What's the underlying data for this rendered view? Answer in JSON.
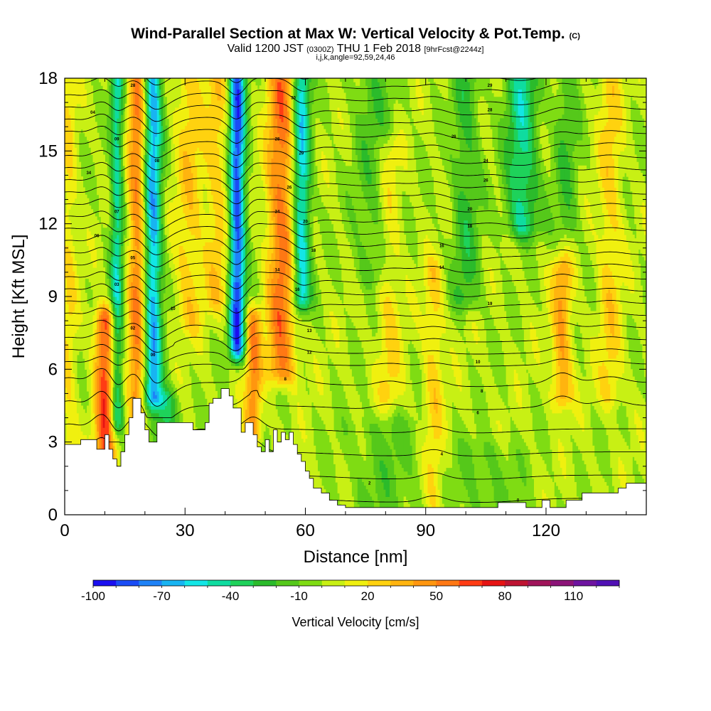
{
  "chart_data": {
    "type": "heatmap",
    "title": "Wind-Parallel Section at Max W: Vertical Velocity & Pot.Temp.",
    "title_mark": "(C)",
    "subtitle_main": "Valid 1200 JST",
    "subtitle_utc": "(0300Z)",
    "subtitle_date": "THU 1 Feb 2018",
    "subtitle_fcst": "[9hrFcst@2244z]",
    "info_line": "i,j,k,angle=92,59,24,46",
    "xlabel": "Distance [nm]",
    "ylabel": "Height [Kft MSL]",
    "xlim": [
      0,
      145
    ],
    "ylim": [
      0,
      18
    ],
    "x_ticks": [
      0,
      30,
      60,
      90,
      120
    ],
    "y_ticks": [
      0,
      3,
      6,
      9,
      12,
      15,
      18
    ],
    "colorbar": {
      "label": "Vertical Velocity [cm/s]",
      "min": -100,
      "max": 130,
      "step": 10,
      "tick_labels": [
        -100,
        -70,
        -40,
        -10,
        20,
        50,
        80,
        110
      ],
      "colors": [
        "#1a0ff0",
        "#1a4cf5",
        "#1e82f7",
        "#18b4f2",
        "#13e6e6",
        "#0fdca0",
        "#1ed25a",
        "#2bbb2b",
        "#55c81a",
        "#7fdc13",
        "#c8f014",
        "#f0f00f",
        "#ffd20f",
        "#ffb40f",
        "#ff960f",
        "#ff7814",
        "#ff3c14",
        "#e61414",
        "#be1432",
        "#a0145a",
        "#8c1478",
        "#6e14a0",
        "#5010b4"
      ]
    },
    "background_color": "#7fdc13",
    "updraft_bands": [
      {
        "x": 10,
        "w": 2.5,
        "amp": 62,
        "zmin": 2.5,
        "zmax": 8
      },
      {
        "x": 18,
        "w": 2.2,
        "amp": 48,
        "zmin": 3.5,
        "zmax": 18
      },
      {
        "x": 31,
        "w": 3.5,
        "amp": 24,
        "zmin": 8,
        "zmax": 18
      },
      {
        "x": 47,
        "w": 2.0,
        "amp": 45,
        "zmin": 3.5,
        "zmax": 8
      },
      {
        "x": 54,
        "w": 3.5,
        "amp": 52,
        "zmin": 6,
        "zmax": 18
      },
      {
        "x": 38,
        "w": 3.0,
        "amp": 24,
        "zmin": 9,
        "zmax": 18
      },
      {
        "x": 92,
        "w": 2.5,
        "amp": 22,
        "zmin": 0.5,
        "zmax": 10
      },
      {
        "x": 81,
        "w": 3.0,
        "amp": 20,
        "zmin": 5,
        "zmax": 15
      },
      {
        "x": 124,
        "w": 2.5,
        "amp": 38,
        "zmin": 5,
        "zmax": 10
      },
      {
        "x": 136,
        "w": 3.0,
        "amp": 22,
        "zmin": 5,
        "zmax": 18
      },
      {
        "x": 1,
        "w": 2.0,
        "amp": 18,
        "zmin": 3,
        "zmax": 18
      }
    ],
    "downdraft_bands": [
      {
        "x": 13,
        "w": 1.6,
        "amp": -48,
        "zmin": 4,
        "zmax": 18
      },
      {
        "x": 22,
        "w": 2.2,
        "amp": -68,
        "zmin": 5,
        "zmax": 18
      },
      {
        "x": 43,
        "w": 2.0,
        "amp": -88,
        "zmin": 7,
        "zmax": 18
      },
      {
        "x": 59,
        "w": 2.2,
        "amp": -62,
        "zmin": 9,
        "zmax": 18
      },
      {
        "x": 114,
        "w": 4.0,
        "amp": -45,
        "zmin": 12,
        "zmax": 18
      },
      {
        "x": 100,
        "w": 3.5,
        "amp": -25,
        "zmin": 9,
        "zmax": 18
      },
      {
        "x": 77,
        "w": 5.0,
        "amp": -18,
        "zmin": 10,
        "zmax": 18
      },
      {
        "x": 125,
        "w": 3.0,
        "amp": -20,
        "zmin": 12,
        "zmax": 18
      },
      {
        "x": 25,
        "w": 3.0,
        "amp": -40,
        "zmin": 3.5,
        "zmax": 4.6
      },
      {
        "x": 80,
        "w": 10.0,
        "amp": -14,
        "zmin": 0.5,
        "zmax": 3.5
      },
      {
        "x": 105,
        "w": 8.0,
        "amp": -14,
        "zmin": 0.5,
        "zmax": 2.5
      }
    ],
    "terrain": [
      [
        0,
        2.9
      ],
      [
        4,
        2.9
      ],
      [
        4,
        3.1
      ],
      [
        8,
        3.1
      ],
      [
        8,
        2.7
      ],
      [
        10,
        2.7
      ],
      [
        10,
        3.3
      ],
      [
        11,
        3.3
      ],
      [
        11,
        2.7
      ],
      [
        12,
        2.7
      ],
      [
        12,
        2.3
      ],
      [
        13,
        2.3
      ],
      [
        13,
        2.0
      ],
      [
        14,
        2.0
      ],
      [
        14,
        2.6
      ],
      [
        15,
        2.6
      ],
      [
        15,
        3.3
      ],
      [
        16,
        3.3
      ],
      [
        16,
        4.0
      ],
      [
        17,
        4.0
      ],
      [
        17,
        4.8
      ],
      [
        19,
        4.8
      ],
      [
        19,
        4.2
      ],
      [
        20,
        4.2
      ],
      [
        20,
        3.5
      ],
      [
        21,
        3.5
      ],
      [
        21,
        3.0
      ],
      [
        23,
        3.0
      ],
      [
        23,
        3.8
      ],
      [
        25,
        3.8
      ],
      [
        25,
        3.8
      ],
      [
        32,
        3.8
      ],
      [
        32,
        3.5
      ],
      [
        35,
        3.5
      ],
      [
        35,
        3.8
      ],
      [
        36,
        3.8
      ],
      [
        36,
        4.6
      ],
      [
        37,
        4.6
      ],
      [
        37,
        4.8
      ],
      [
        39,
        4.8
      ],
      [
        39,
        5.2
      ],
      [
        41,
        5.2
      ],
      [
        41,
        4.9
      ],
      [
        42,
        4.9
      ],
      [
        42,
        4.4
      ],
      [
        44,
        4.4
      ],
      [
        44,
        3.4
      ],
      [
        45,
        3.4
      ],
      [
        45,
        3.8
      ],
      [
        47,
        3.8
      ],
      [
        47,
        3.3
      ],
      [
        48,
        3.3
      ],
      [
        48,
        2.8
      ],
      [
        49,
        2.8
      ],
      [
        49,
        2.6
      ],
      [
        50,
        2.6
      ],
      [
        50,
        3.1
      ],
      [
        51,
        3.1
      ],
      [
        51,
        2.6
      ],
      [
        52,
        2.6
      ],
      [
        52,
        3.5
      ],
      [
        53,
        3.5
      ],
      [
        53,
        3.0
      ],
      [
        54,
        3.0
      ],
      [
        54,
        3.4
      ],
      [
        55,
        3.4
      ],
      [
        55,
        3.1
      ],
      [
        56,
        3.1
      ],
      [
        56,
        3.4
      ],
      [
        57,
        3.4
      ],
      [
        57,
        2.9
      ],
      [
        58,
        2.9
      ],
      [
        58,
        2.5
      ],
      [
        59,
        2.5
      ],
      [
        59,
        2.2
      ],
      [
        60,
        2.2
      ],
      [
        60,
        1.8
      ],
      [
        61,
        1.8
      ],
      [
        61,
        1.5
      ],
      [
        62,
        1.5
      ],
      [
        62,
        1.1
      ],
      [
        64,
        1.1
      ],
      [
        64,
        0.9
      ],
      [
        66,
        0.9
      ],
      [
        66,
        0.6
      ],
      [
        68,
        0.6
      ],
      [
        68,
        0.4
      ],
      [
        70,
        0.4
      ],
      [
        70,
        0.3
      ],
      [
        71,
        0.3
      ],
      [
        71,
        0.3
      ],
      [
        108,
        0.3
      ],
      [
        108,
        0.5
      ],
      [
        115,
        0.5
      ],
      [
        115,
        0.3
      ],
      [
        119,
        0.3
      ],
      [
        119,
        0.6
      ],
      [
        121,
        0.6
      ],
      [
        121,
        0.3
      ],
      [
        125,
        0.3
      ],
      [
        125,
        0.6
      ],
      [
        129,
        0.6
      ],
      [
        129,
        0.9
      ],
      [
        138,
        0.9
      ],
      [
        138,
        1.1
      ],
      [
        140,
        1.1
      ],
      [
        140,
        1.3
      ],
      [
        145,
        1.3
      ]
    ],
    "contours": {
      "label": "potential temperature (K)",
      "levels": [
        -6,
        -5,
        -4,
        -3,
        -2,
        -1,
        0,
        1,
        2,
        3,
        4,
        5,
        6,
        7,
        8,
        9,
        10,
        11,
        12,
        13,
        14,
        15,
        16,
        17,
        18,
        19,
        20,
        21,
        22,
        23,
        24,
        25,
        26,
        27,
        28,
        29,
        30,
        31,
        32,
        33,
        34,
        35,
        36,
        37,
        38
      ],
      "base_theta": 280,
      "upper_lapse": 2.1,
      "low_lapse": 1.1,
      "transition_height": 6
    },
    "contour_labels": [
      {
        "x": 17,
        "z": 17.7,
        "text": "28"
      },
      {
        "x": 7,
        "z": 16.6,
        "text": "04"
      },
      {
        "x": 13,
        "z": 15.5,
        "text": "09"
      },
      {
        "x": 23,
        "z": 14.6,
        "text": "08"
      },
      {
        "x": 6,
        "z": 14.1,
        "text": "34"
      },
      {
        "x": 13,
        "z": 12.5,
        "text": "07"
      },
      {
        "x": 8,
        "z": 11.5,
        "text": "06"
      },
      {
        "x": 17,
        "z": 10.6,
        "text": "05"
      },
      {
        "x": 13,
        "z": 9.5,
        "text": "03"
      },
      {
        "x": 27,
        "z": 8.5,
        "text": "10"
      },
      {
        "x": 17,
        "z": 7.7,
        "text": "02"
      },
      {
        "x": 22,
        "z": 6.6,
        "text": "00"
      },
      {
        "x": 57,
        "z": 17.2,
        "text": "30"
      },
      {
        "x": 53,
        "z": 15.5,
        "text": "28"
      },
      {
        "x": 59,
        "z": 14.9,
        "text": "29"
      },
      {
        "x": 56,
        "z": 13.5,
        "text": "26"
      },
      {
        "x": 53,
        "z": 12.5,
        "text": "24"
      },
      {
        "x": 60,
        "z": 12.1,
        "text": "20"
      },
      {
        "x": 62,
        "z": 10.9,
        "text": "18"
      },
      {
        "x": 53,
        "z": 10.1,
        "text": "14"
      },
      {
        "x": 58,
        "z": 9.3,
        "text": "16"
      },
      {
        "x": 61,
        "z": 7.6,
        "text": "13"
      },
      {
        "x": 61,
        "z": 6.7,
        "text": "12"
      },
      {
        "x": 55,
        "z": 5.6,
        "text": "8"
      },
      {
        "x": 106,
        "z": 17.7,
        "text": "29"
      },
      {
        "x": 106,
        "z": 16.7,
        "text": "28"
      },
      {
        "x": 97,
        "z": 15.6,
        "text": "26"
      },
      {
        "x": 105,
        "z": 14.6,
        "text": "24"
      },
      {
        "x": 105,
        "z": 13.8,
        "text": "26"
      },
      {
        "x": 101,
        "z": 12.6,
        "text": "20"
      },
      {
        "x": 101,
        "z": 11.9,
        "text": "18"
      },
      {
        "x": 94,
        "z": 11.1,
        "text": "16"
      },
      {
        "x": 94,
        "z": 10.2,
        "text": "14"
      },
      {
        "x": 106,
        "z": 8.7,
        "text": "19"
      },
      {
        "x": 103,
        "z": 6.3,
        "text": "10"
      },
      {
        "x": 104,
        "z": 5.1,
        "text": "8"
      },
      {
        "x": 103,
        "z": 4.2,
        "text": "6"
      },
      {
        "x": 94,
        "z": 2.5,
        "text": "4"
      },
      {
        "x": 76,
        "z": 1.3,
        "text": "2"
      },
      {
        "x": 113,
        "z": 0.6,
        "text": "0"
      }
    ]
  }
}
